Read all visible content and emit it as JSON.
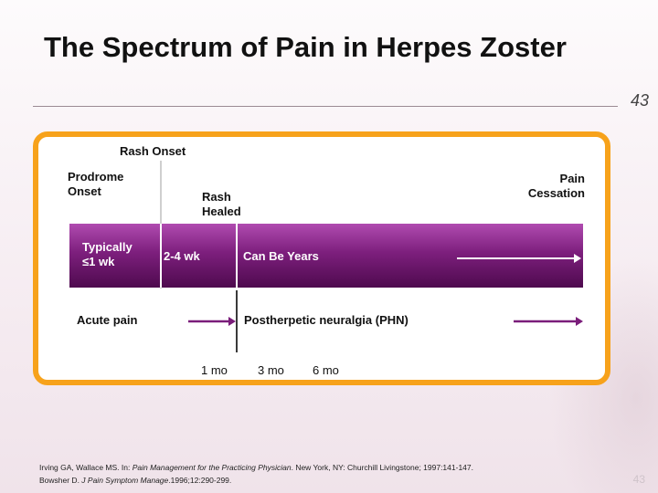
{
  "slide": {
    "title": "The Spectrum of Pain in Herpes Zoster",
    "page_number": "43"
  },
  "diagram": {
    "labels": {
      "rash_onset": "Rash Onset",
      "prodrome_onset": "Prodrome Onset",
      "rash_healed": "Rash Healed",
      "pain_cessation": "Pain Cessation"
    },
    "band": {
      "segment_1": "Typically ≤1 wk",
      "segment_2": "2-4 wk",
      "segment_3": "Can Be Years",
      "color_top": "#b04bb0",
      "color_bottom": "#4e0a4e"
    },
    "pain": {
      "acute": "Acute pain",
      "phn": "Postherpetic neuralgia (PHN)"
    },
    "ticks": [
      "1 mo",
      "3 mo",
      "6 mo"
    ],
    "accent_color": "#f7a21b"
  },
  "references": {
    "ref1_prefix": "Irving GA, Wallace MS. In: ",
    "ref1_title": "Pain Management for the Practicing Physician",
    "ref1_suffix": ". New York, NY: Churchill Livingstone; 1997:141-147.",
    "ref2_prefix": "Bowsher D. ",
    "ref2_journal": "J Pain Symptom Manage",
    "ref2_suffix": ".1996;12:290-299."
  }
}
